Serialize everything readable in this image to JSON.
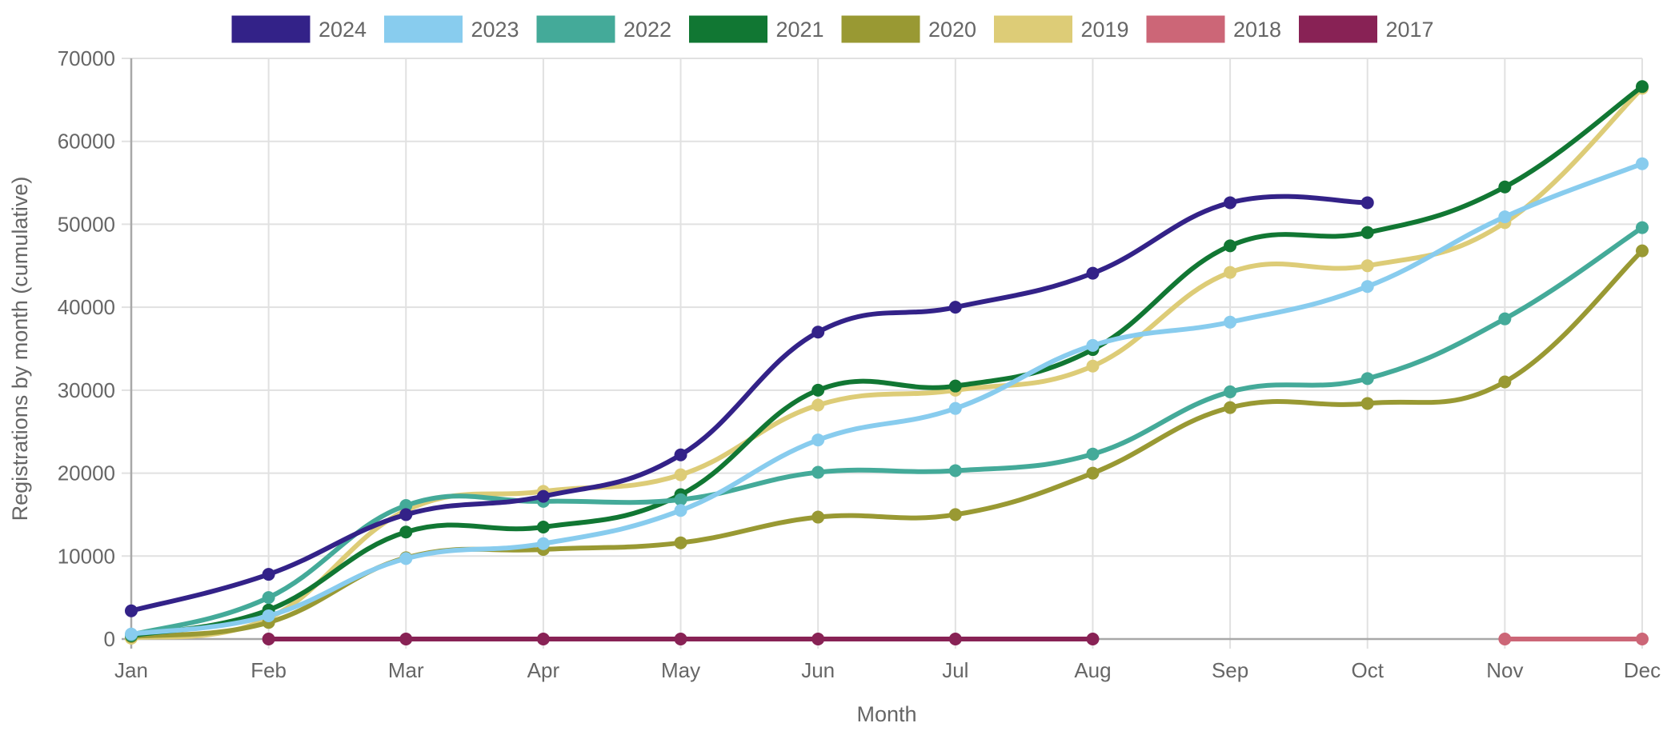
{
  "chart_data": {
    "type": "line",
    "title": "",
    "xlabel": "Month",
    "ylabel": "Registrations by month (cumulative)",
    "categories": [
      "Jan",
      "Feb",
      "Mar",
      "Apr",
      "May",
      "Jun",
      "Jul",
      "Aug",
      "Sep",
      "Oct",
      "Nov",
      "Dec"
    ],
    "ylim": [
      0,
      70000
    ],
    "yticks": [
      0,
      10000,
      20000,
      30000,
      40000,
      50000,
      60000,
      70000
    ],
    "ytick_labels": [
      "0",
      "10000",
      "20000",
      "30000",
      "40000",
      "50000",
      "60000",
      "70000"
    ],
    "grid": true,
    "legend_position": "top",
    "curve": "smooth",
    "series": [
      {
        "name": "2024",
        "color": "#332288",
        "values": [
          3400,
          7800,
          15000,
          17200,
          22200,
          37000,
          40000,
          44100,
          52600,
          52600,
          null,
          null
        ]
      },
      {
        "name": "2023",
        "color": "#88ccee",
        "values": [
          600,
          2800,
          9700,
          11500,
          15500,
          24000,
          27800,
          35400,
          38200,
          42500,
          50900,
          57300
        ]
      },
      {
        "name": "2022",
        "color": "#44aa99",
        "values": [
          500,
          5000,
          16100,
          16600,
          16800,
          20100,
          20300,
          22300,
          29800,
          31400,
          38600,
          49600
        ]
      },
      {
        "name": "2021",
        "color": "#117733",
        "values": [
          400,
          3500,
          12900,
          13500,
          17400,
          30000,
          30500,
          34900,
          47400,
          49000,
          54500,
          66600
        ]
      },
      {
        "name": "2020",
        "color": "#999933",
        "values": [
          300,
          2000,
          9800,
          10800,
          11600,
          14700,
          15000,
          20000,
          27900,
          28400,
          31000,
          46800
        ]
      },
      {
        "name": "2019",
        "color": "#ddcc77",
        "values": [
          100,
          2500,
          15500,
          17800,
          19800,
          28200,
          30000,
          32900,
          44200,
          45000,
          50200,
          66400
        ]
      },
      {
        "name": "2018",
        "color": "#cc6677",
        "values": [
          null,
          null,
          null,
          null,
          null,
          null,
          null,
          null,
          null,
          null,
          0,
          0
        ]
      },
      {
        "name": "2017",
        "color": "#882255",
        "values": [
          null,
          0,
          0,
          0,
          0,
          0,
          0,
          0,
          null,
          null,
          null,
          null
        ]
      }
    ]
  }
}
